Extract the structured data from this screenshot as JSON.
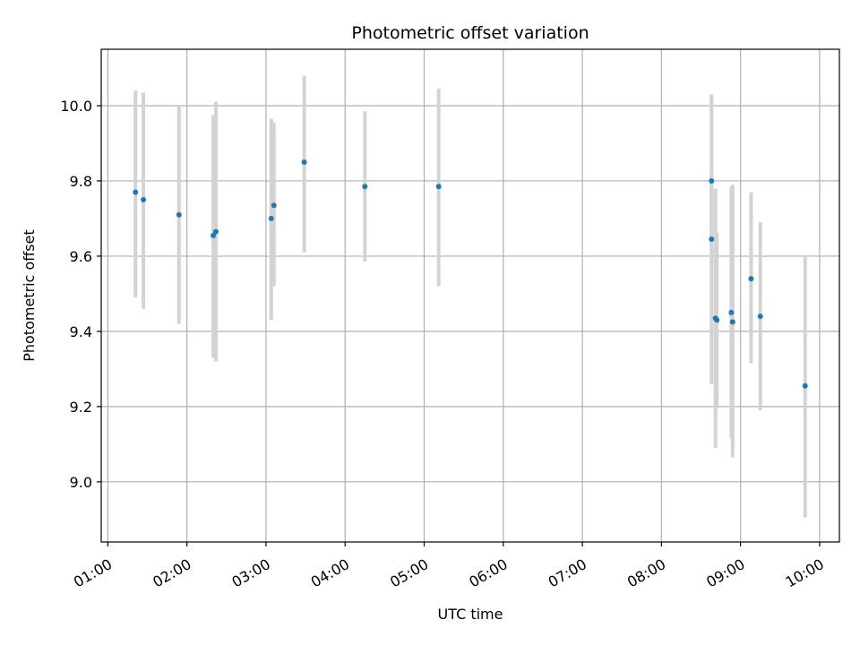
{
  "chart_data": {
    "type": "scatter",
    "title": "Photometric offset variation",
    "xlabel": "UTC time",
    "ylabel": "Photometric offset",
    "x_ticks": [
      "01:00",
      "02:00",
      "03:00",
      "04:00",
      "05:00",
      "06:00",
      "07:00",
      "08:00",
      "09:00",
      "10:00"
    ],
    "y_ticks": [
      "9.0",
      "9.2",
      "9.4",
      "9.6",
      "9.8",
      "10.0"
    ],
    "xlim": [
      "00:55",
      "10:15"
    ],
    "ylim": [
      8.84,
      10.15
    ],
    "grid": true,
    "colors": {
      "point": "#1f77b4",
      "errorbar": "#d3d3d3",
      "grid": "#b0b0b0"
    },
    "points": [
      {
        "x": "01:21",
        "y": 9.77,
        "err_low": 9.49,
        "err_high": 10.04
      },
      {
        "x": "01:27",
        "y": 9.75,
        "err_low": 9.46,
        "err_high": 10.035
      },
      {
        "x": "01:54",
        "y": 9.71,
        "err_low": 9.42,
        "err_high": 10.0
      },
      {
        "x": "02:20",
        "y": 9.655,
        "err_low": 9.33,
        "err_high": 9.975
      },
      {
        "x": "02:22",
        "y": 9.665,
        "err_low": 9.32,
        "err_high": 10.01
      },
      {
        "x": "03:04",
        "y": 9.7,
        "err_low": 9.43,
        "err_high": 9.965
      },
      {
        "x": "03:06",
        "y": 9.735,
        "err_low": 9.52,
        "err_high": 9.955
      },
      {
        "x": "03:29",
        "y": 9.85,
        "err_low": 9.61,
        "err_high": 10.08
      },
      {
        "x": "04:15",
        "y": 9.785,
        "err_low": 9.585,
        "err_high": 9.985
      },
      {
        "x": "05:11",
        "y": 9.785,
        "err_low": 9.52,
        "err_high": 10.045
      },
      {
        "x": "08:38",
        "y": 9.8,
        "err_low": 9.575,
        "err_high": 10.025
      },
      {
        "x": "08:38",
        "y": 9.645,
        "err_low": 9.26,
        "err_high": 10.03
      },
      {
        "x": "08:41",
        "y": 9.435,
        "err_low": 9.09,
        "err_high": 9.78
      },
      {
        "x": "08:42",
        "y": 9.43,
        "err_low": 9.195,
        "err_high": 9.665
      },
      {
        "x": "08:53",
        "y": 9.45,
        "err_low": 9.115,
        "err_high": 9.785
      },
      {
        "x": "08:54",
        "y": 9.425,
        "err_low": 9.065,
        "err_high": 9.79
      },
      {
        "x": "09:08",
        "y": 9.54,
        "err_low": 9.315,
        "err_high": 9.77
      },
      {
        "x": "09:15",
        "y": 9.44,
        "err_low": 9.19,
        "err_high": 9.69
      },
      {
        "x": "09:49",
        "y": 9.255,
        "err_low": 8.905,
        "err_high": 9.6
      }
    ]
  }
}
